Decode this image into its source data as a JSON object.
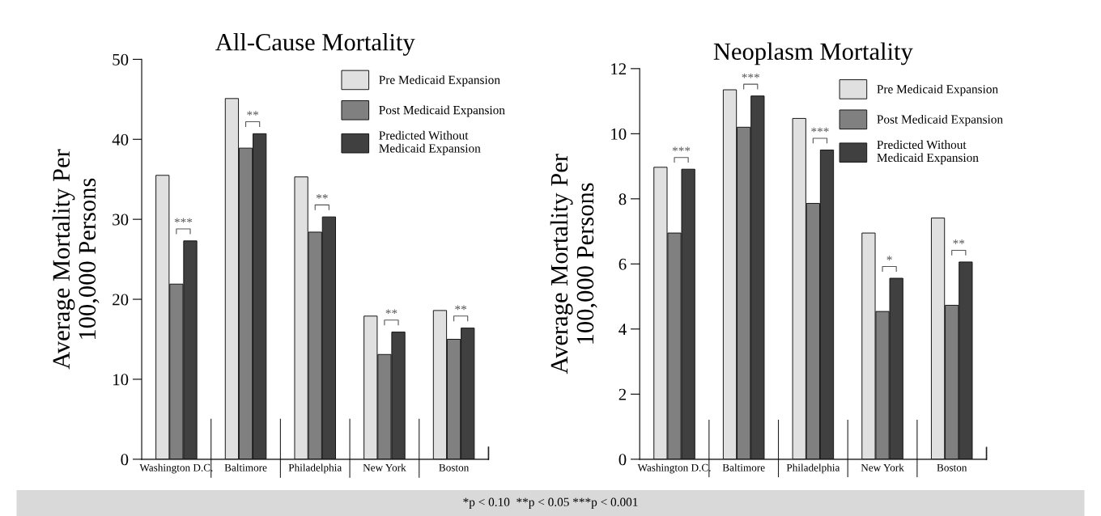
{
  "chart_data": [
    {
      "type": "bar",
      "title": "All-Cause Mortality",
      "ylabel": "Average Mortality Per\n100,000 Persons",
      "categories": [
        "Washington D.C.",
        "Baltimore",
        "Philadelphia",
        "New York",
        "Boston"
      ],
      "series": [
        {
          "name": "Pre Medicaid Expansion",
          "color": "#e0e0e0",
          "values": [
            35.5,
            45.1,
            35.3,
            17.9,
            18.6
          ]
        },
        {
          "name": "Post Medicaid Expansion",
          "color": "#808080",
          "values": [
            21.9,
            38.9,
            28.4,
            13.1,
            15.0
          ]
        },
        {
          "name": "Predicted Without\nMedicaid Expansion",
          "color": "#404040",
          "values": [
            27.3,
            40.7,
            30.3,
            15.9,
            16.4
          ]
        }
      ],
      "ylim": [
        0,
        50
      ],
      "yticks": [
        0,
        10,
        20,
        30,
        40,
        50
      ],
      "grid": false,
      "legend": "top right",
      "annotations": [
        "***",
        "**",
        "**",
        "**",
        "**",
        "*p < 0.10  **p < 0.05 ***p < 0.001"
      ]
    },
    {
      "type": "bar",
      "title": "Neoplasm Mortality",
      "ylabel": "Average Mortality Per\n100,000 Persons",
      "categories": [
        "Washington D.C.",
        "Baltimore",
        "Philadelphia",
        "New York",
        "Boston"
      ],
      "series": [
        {
          "name": "Pre Medicaid Expansion",
          "color": "#e0e0e0",
          "values": [
            8.97,
            11.35,
            10.47,
            6.95,
            7.41
          ]
        },
        {
          "name": "Post Medicaid Expansion",
          "color": "#808080",
          "values": [
            6.95,
            10.2,
            7.86,
            4.54,
            4.73
          ]
        },
        {
          "name": "Predicted Without\nMedicaid Expansion",
          "color": "#404040",
          "values": [
            8.91,
            11.16,
            9.5,
            5.56,
            6.06
          ]
        }
      ],
      "ylim": [
        0,
        12
      ],
      "yticks": [
        0,
        2,
        4,
        6,
        8,
        10,
        12
      ],
      "grid": false,
      "legend": "top right",
      "annotations": [
        "***",
        "***",
        "***",
        "*",
        "**"
      ]
    }
  ]
}
